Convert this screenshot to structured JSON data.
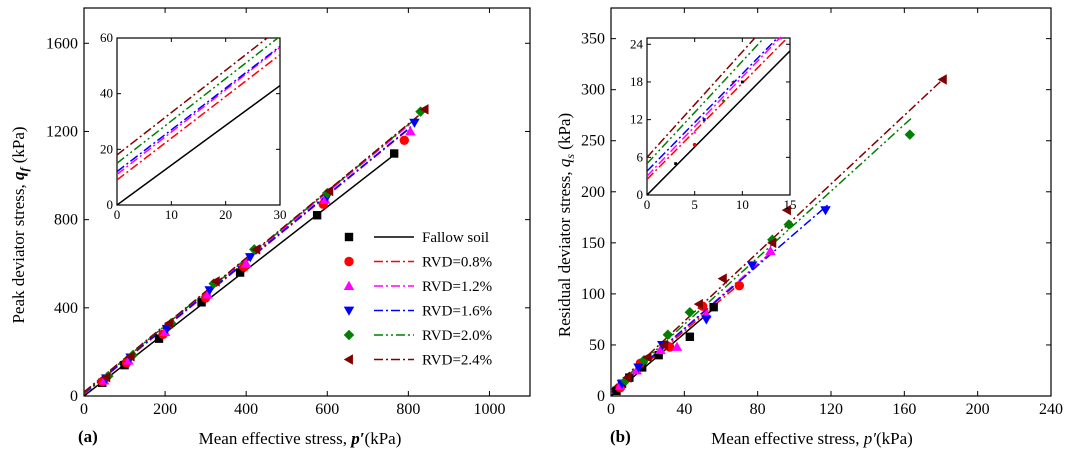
{
  "panel_labels": [
    "(a)",
    "(b)"
  ],
  "axis_text": {
    "a_x_prefix": "Mean effective stress, ",
    "a_x_var": "p′",
    "a_x_unit": "(kPa)",
    "a_y_prefix": "Peak deviator stress, ",
    "a_y_var": "q",
    "a_y_sub": "f",
    "a_y_unit": " (kPa)",
    "b_x_prefix": "Mean effective stress, ",
    "b_x_var": "p′",
    "b_x_unit": "(kPa)",
    "b_y_prefix": "Residual deviator stress, ",
    "b_y_var": "q",
    "b_y_sub": "s",
    "b_y_unit": " (kPa)"
  },
  "legend": [
    {
      "label": "Fallow soil",
      "marker": "square",
      "color": "#000000",
      "dash": "solid"
    },
    {
      "label": "RVD=0.8%",
      "marker": "circle",
      "color": "#ff0000",
      "dash": "dashdot"
    },
    {
      "label": "RVD=1.2%",
      "marker": "triangle-up",
      "color": "#ff00ff",
      "dash": "dashdot"
    },
    {
      "label": "RVD=1.6%",
      "marker": "triangle-down",
      "color": "#0000ff",
      "dash": "dashdot"
    },
    {
      "label": "RVD=2.0%",
      "marker": "diamond",
      "color": "#008000",
      "dash": "dashdotdot"
    },
    {
      "label": "RVD=2.4%",
      "marker": "triangle-left",
      "color": "#800000",
      "dash": "dashdot"
    }
  ],
  "chart_data": [
    {
      "id": "a",
      "type": "scatter",
      "xlabel": "Mean effective stress, p′(kPa)",
      "ylabel": "Peak deviator stress, qf (kPa)",
      "xlim": [
        0,
        1100
      ],
      "ylim": [
        0,
        1760
      ],
      "xticks": [
        0,
        200,
        400,
        600,
        800,
        1000
      ],
      "yticks": [
        0,
        400,
        800,
        1200,
        1600
      ],
      "legend_position": "bottom-right",
      "series": [
        {
          "name": "Fallow soil",
          "color": "#000000",
          "points": [
            [
              45,
              60
            ],
            [
              100,
              140
            ],
            [
              185,
              260
            ],
            [
              290,
              425
            ],
            [
              385,
              560
            ],
            [
              575,
              820
            ],
            [
              765,
              1100
            ]
          ],
          "line": {
            "intercept": 0,
            "slope": 1.43
          }
        },
        {
          "name": "RVD=0.8%",
          "color": "#ff0000",
          "points": [
            [
              45,
              65
            ],
            [
              105,
              150
            ],
            [
              195,
              280
            ],
            [
              300,
              445
            ],
            [
              395,
              585
            ],
            [
              590,
              870
            ],
            [
              790,
              1160
            ]
          ],
          "line": {
            "intercept": 9,
            "slope": 1.5
          }
        },
        {
          "name": "RVD=1.2%",
          "color": "#ff00ff",
          "points": [
            [
              50,
              70
            ],
            [
              110,
              160
            ],
            [
              200,
              290
            ],
            [
              305,
              460
            ],
            [
              400,
              600
            ],
            [
              595,
              890
            ],
            [
              805,
              1200
            ]
          ],
          "line": {
            "intercept": 11,
            "slope": 1.52
          }
        },
        {
          "name": "RVD=1.6%",
          "color": "#0000ff",
          "points": [
            [
              55,
              80
            ],
            [
              115,
              175
            ],
            [
              205,
              305
            ],
            [
              310,
              480
            ],
            [
              410,
              630
            ],
            [
              600,
              905
            ],
            [
              815,
              1240
            ]
          ],
          "line": {
            "intercept": 12,
            "slope": 1.5
          }
        },
        {
          "name": "RVD=2.0%",
          "color": "#008000",
          "points": [
            [
              60,
              90
            ],
            [
              120,
              185
            ],
            [
              215,
              330
            ],
            [
              320,
              510
            ],
            [
              420,
              665
            ],
            [
              600,
              920
            ],
            [
              830,
              1290
            ]
          ],
          "line": {
            "intercept": 15,
            "slope": 1.52
          }
        },
        {
          "name": "RVD=2.4%",
          "color": "#800000",
          "points": [
            [
              55,
              85
            ],
            [
              115,
              180
            ],
            [
              210,
              330
            ],
            [
              325,
              520
            ],
            [
              425,
              665
            ],
            [
              605,
              930
            ],
            [
              840,
              1300
            ]
          ],
          "line": {
            "intercept": 18,
            "slope": 1.52
          }
        }
      ],
      "inset": {
        "xlim": [
          0,
          30
        ],
        "ylim": [
          0,
          60
        ],
        "xticks": [
          0,
          10,
          20,
          30
        ],
        "yticks": [
          0,
          20,
          40,
          60
        ]
      }
    },
    {
      "id": "b",
      "type": "scatter",
      "xlabel": "Mean effective stress, p′(kPa)",
      "ylabel": "Residual deviator stress, qs (kPa)",
      "xlim": [
        0,
        240
      ],
      "ylim": [
        0,
        380
      ],
      "xticks": [
        0,
        40,
        80,
        120,
        160,
        200,
        240
      ],
      "yticks": [
        0,
        50,
        100,
        150,
        200,
        250,
        300,
        350
      ],
      "series": [
        {
          "name": "Fallow soil",
          "color": "#000000",
          "points": [
            [
              3,
              5
            ],
            [
              6,
              12
            ],
            [
              10,
              18
            ],
            [
              17,
              28
            ],
            [
              26,
              40
            ],
            [
              43,
              58
            ],
            [
              56,
              87
            ]
          ],
          "line": {
            "intercept": 0,
            "slope": 1.53
          }
        },
        {
          "name": "RVD=0.8%",
          "color": "#ff0000",
          "points": [
            [
              5,
              8
            ],
            [
              16,
              32
            ],
            [
              32,
              48
            ],
            [
              50,
              88
            ],
            [
              70,
              108
            ]
          ],
          "line": {
            "intercept": 2.5,
            "slope": 1.53
          }
        },
        {
          "name": "RVD=1.2%",
          "color": "#ff00ff",
          "points": [
            [
              5,
              10
            ],
            [
              14,
              25
            ],
            [
              27,
              45
            ],
            [
              36,
              48
            ],
            [
              52,
              80
            ],
            [
              87,
              142
            ]
          ],
          "line": {
            "intercept": 3,
            "slope": 1.58
          }
        },
        {
          "name": "RVD=1.6%",
          "color": "#0000ff",
          "points": [
            [
              6,
              12
            ],
            [
              15,
              28
            ],
            [
              28,
              50
            ],
            [
              52,
              75
            ],
            [
              77,
              128
            ],
            [
              117,
              182
            ]
          ],
          "line": {
            "intercept": 3.8,
            "slope": 1.55
          }
        },
        {
          "name": "RVD=2.0%",
          "color": "#008000",
          "points": [
            [
              8,
              15
            ],
            [
              18,
              35
            ],
            [
              31,
              60
            ],
            [
              43,
              82
            ],
            [
              88,
              153
            ],
            [
              97,
              168
            ],
            [
              163,
              256
            ]
          ],
          "line": {
            "intercept": 5,
            "slope": 1.63
          }
        },
        {
          "name": "RVD=2.4%",
          "color": "#800000",
          "points": [
            [
              9,
              18
            ],
            [
              20,
              38
            ],
            [
              29,
              50
            ],
            [
              48,
              90
            ],
            [
              61,
              115
            ],
            [
              88,
              150
            ],
            [
              96,
              182
            ],
            [
              181,
              310
            ]
          ],
          "line": {
            "intercept": 6,
            "slope": 1.68
          }
        }
      ],
      "inset": {
        "xlim": [
          0,
          15
        ],
        "ylim": [
          0,
          25
        ],
        "xticks": [
          0,
          5,
          10,
          15
        ],
        "yticks": [
          0,
          6,
          12,
          18,
          24
        ]
      }
    }
  ]
}
